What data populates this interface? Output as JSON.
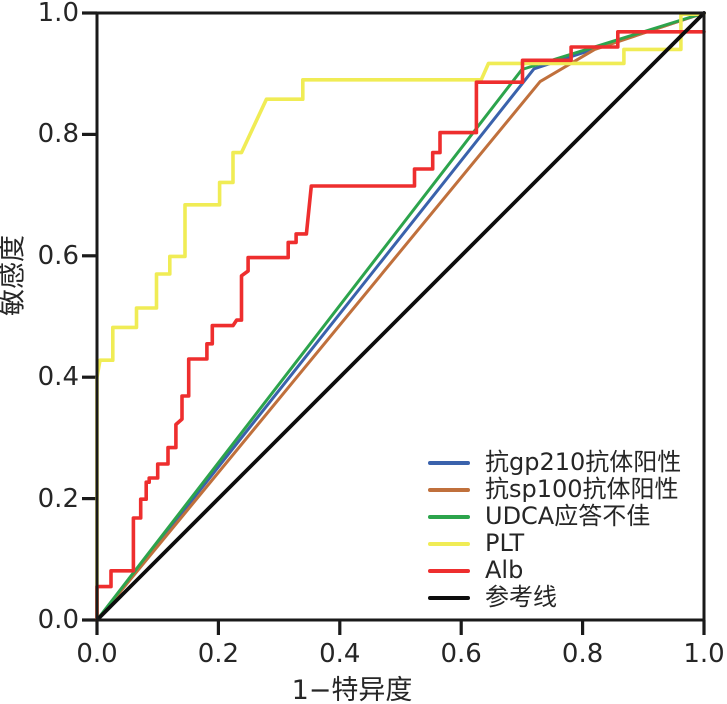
{
  "chart_data": {
    "type": "line",
    "subtype": "roc-curves",
    "title": "",
    "xlabel": "1−特异度",
    "ylabel": "敏感度",
    "xlim": [
      0.0,
      1.0
    ],
    "ylim": [
      0.0,
      1.0
    ],
    "grid": false,
    "legend_position": "lower right",
    "x_ticks": [
      0.0,
      0.2,
      0.4,
      0.6,
      0.8,
      1.0
    ],
    "x_tick_labels": [
      "0.0",
      "0.2",
      "0.4",
      "0.6",
      "0.8",
      "1.0"
    ],
    "y_ticks": [
      0.0,
      0.2,
      0.4,
      0.6,
      0.8,
      1.0
    ],
    "y_tick_labels": [
      "0.0",
      "0.2",
      "0.4",
      "0.6",
      "0.8",
      "1.0"
    ],
    "axis_color": "#1a1a1a",
    "series": [
      {
        "name": "抗gp210抗体阳性",
        "color": "#3a62ac",
        "line_width": 3,
        "points": [
          [
            0,
            0
          ],
          [
            0.72,
            0.908
          ],
          [
            1,
            1
          ]
        ]
      },
      {
        "name": "抗sp100抗体阳性",
        "color": "#c0703c",
        "line_width": 3,
        "points": [
          [
            0,
            0
          ],
          [
            0.73,
            0.887
          ],
          [
            0.82,
            0.94
          ],
          [
            1,
            1
          ]
        ]
      },
      {
        "name": "UDCA应答不佳",
        "color": "#2ca44c",
        "line_width": 3,
        "points": [
          [
            0,
            0
          ],
          [
            0.7,
            0.907
          ],
          [
            1,
            1
          ]
        ]
      },
      {
        "name": "PLT",
        "color": "#f0ec55",
        "line_width": 3.6,
        "points": [
          [
            0,
            0
          ],
          [
            0,
            0.4
          ],
          [
            0.005,
            0.428
          ],
          [
            0.026,
            0.428
          ],
          [
            0.026,
            0.482
          ],
          [
            0.065,
            0.482
          ],
          [
            0.065,
            0.514
          ],
          [
            0.098,
            0.514
          ],
          [
            0.098,
            0.57
          ],
          [
            0.12,
            0.57
          ],
          [
            0.12,
            0.599
          ],
          [
            0.145,
            0.599
          ],
          [
            0.145,
            0.684
          ],
          [
            0.202,
            0.684
          ],
          [
            0.202,
            0.721
          ],
          [
            0.224,
            0.721
          ],
          [
            0.224,
            0.77
          ],
          [
            0.238,
            0.77
          ],
          [
            0.279,
            0.858
          ],
          [
            0.339,
            0.858
          ],
          [
            0.339,
            0.89
          ],
          [
            0.633,
            0.89
          ],
          [
            0.645,
            0.917
          ],
          [
            0.868,
            0.917
          ],
          [
            0.868,
            0.94
          ],
          [
            0.962,
            0.94
          ],
          [
            0.962,
            0.998
          ],
          [
            1,
            0.998
          ]
        ]
      },
      {
        "name": "Alb",
        "color": "#ee2e2e",
        "line_width": 3.6,
        "points": [
          [
            0,
            0
          ],
          [
            0,
            0.055
          ],
          [
            0.023,
            0.055
          ],
          [
            0.023,
            0.081
          ],
          [
            0.06,
            0.081
          ],
          [
            0.06,
            0.168
          ],
          [
            0.072,
            0.168
          ],
          [
            0.072,
            0.199
          ],
          [
            0.081,
            0.199
          ],
          [
            0.081,
            0.227
          ],
          [
            0.086,
            0.227
          ],
          [
            0.086,
            0.234
          ],
          [
            0.1,
            0.234
          ],
          [
            0.1,
            0.257
          ],
          [
            0.117,
            0.257
          ],
          [
            0.117,
            0.284
          ],
          [
            0.13,
            0.284
          ],
          [
            0.13,
            0.322
          ],
          [
            0.14,
            0.331
          ],
          [
            0.14,
            0.369
          ],
          [
            0.151,
            0.369
          ],
          [
            0.151,
            0.43
          ],
          [
            0.181,
            0.43
          ],
          [
            0.181,
            0.455
          ],
          [
            0.19,
            0.455
          ],
          [
            0.19,
            0.485
          ],
          [
            0.224,
            0.485
          ],
          [
            0.23,
            0.494
          ],
          [
            0.238,
            0.494
          ],
          [
            0.238,
            0.567
          ],
          [
            0.249,
            0.575
          ],
          [
            0.249,
            0.597
          ],
          [
            0.315,
            0.597
          ],
          [
            0.315,
            0.622
          ],
          [
            0.328,
            0.622
          ],
          [
            0.328,
            0.636
          ],
          [
            0.345,
            0.636
          ],
          [
            0.353,
            0.715
          ],
          [
            0.523,
            0.715
          ],
          [
            0.523,
            0.743
          ],
          [
            0.553,
            0.743
          ],
          [
            0.553,
            0.77
          ],
          [
            0.565,
            0.77
          ],
          [
            0.565,
            0.803
          ],
          [
            0.625,
            0.803
          ],
          [
            0.625,
            0.886
          ],
          [
            0.701,
            0.886
          ],
          [
            0.701,
            0.922
          ],
          [
            0.781,
            0.922
          ],
          [
            0.781,
            0.944
          ],
          [
            0.858,
            0.944
          ],
          [
            0.858,
            0.969
          ],
          [
            1,
            0.969
          ]
        ]
      },
      {
        "name": "参考线",
        "color": "#0d0d0d",
        "line_width": 3.8,
        "points": [
          [
            0,
            0
          ],
          [
            1,
            1
          ]
        ]
      }
    ]
  },
  "legend": {
    "entries": [
      {
        "label": "抗gp210抗体阳性",
        "color": "#3a62ac"
      },
      {
        "label": "抗sp100抗体阳性",
        "color": "#c0703c"
      },
      {
        "label": "UDCA应答不佳",
        "color": "#2ca44c"
      },
      {
        "label": "PLT",
        "color": "#f0ec55"
      },
      {
        "label": "Alb",
        "color": "#ee2e2e"
      },
      {
        "label": "参考线",
        "color": "#0d0d0d"
      }
    ]
  }
}
